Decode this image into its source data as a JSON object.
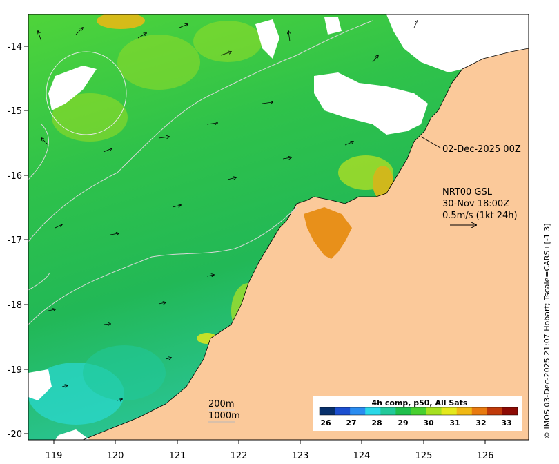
{
  "map": {
    "lon_ticks": [
      "119",
      "120",
      "121",
      "122",
      "123",
      "124",
      "125",
      "126"
    ],
    "lat_ticks": [
      "-14",
      "-15",
      "-16",
      "-17",
      "-18",
      "-19",
      "-20"
    ],
    "date_label": "02-Dec-2025 00Z",
    "vector_info": {
      "line1": "NRT00 GSL",
      "line2": "30-Nov 18:00Z",
      "line3": "0.5m/s (1kt 24h)"
    },
    "contour_legend": {
      "c200": "200m",
      "c1000": "1000m"
    },
    "colorbar": {
      "title": "4h comp, p50, All Sats",
      "ticks": [
        "26",
        "27",
        "28",
        "29",
        "30",
        "31",
        "32",
        "33"
      ],
      "colors": [
        "#08306b",
        "#1c4fd0",
        "#2a8cf0",
        "#2ad8e8",
        "#22c99a",
        "#1fbf4c",
        "#48d030",
        "#a6e020",
        "#e4e81c",
        "#f0b814",
        "#e87a10",
        "#c03a0a",
        "#8c0a04"
      ]
    },
    "colors": {
      "land": "#fbc99a",
      "cloud": "#ffffff",
      "sea_main": "#2ebd4a"
    },
    "side_text": "© IMOS 03-Dec-2025 21:07 Hobart; Tscale=CARS+[-1 3]"
  }
}
